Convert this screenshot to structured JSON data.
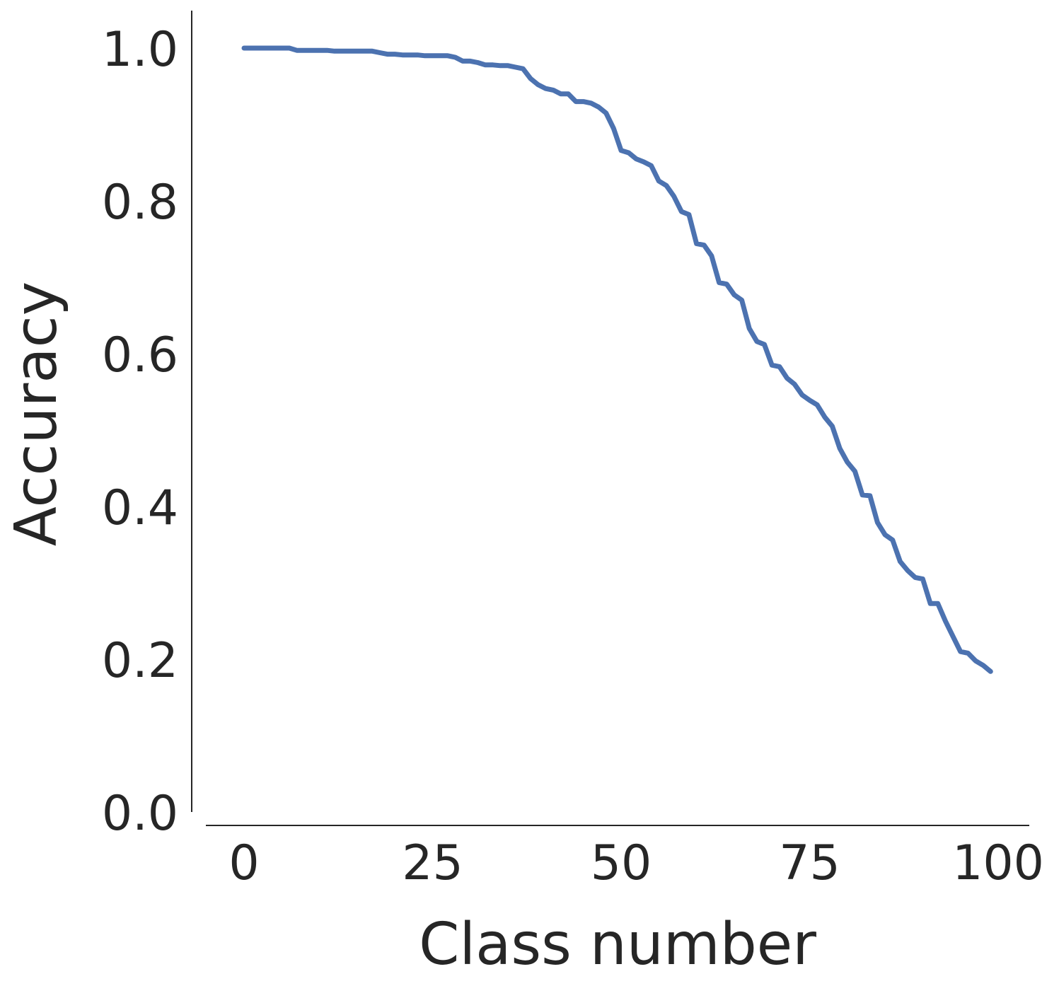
{
  "chart_data": {
    "type": "line",
    "xlabel": "Class number",
    "ylabel": "Accuracy",
    "xlim": [
      -5,
      104
    ],
    "ylim": [
      0,
      1.05
    ],
    "xticks": [
      0,
      25,
      50,
      75,
      100
    ],
    "yticks": [
      0.0,
      0.2,
      0.4,
      0.6,
      0.8,
      1.0
    ],
    "xtick_labels": [
      "0",
      "25",
      "50",
      "75",
      "100"
    ],
    "ytick_labels": [
      "0.0",
      "0.2",
      "0.4",
      "0.6",
      "0.8",
      "1.0"
    ],
    "grid": false,
    "line_color": "#4c72b0",
    "series": [
      {
        "x": [
          0,
          1,
          2,
          3,
          4,
          5,
          6,
          7,
          8,
          9,
          10,
          11,
          12,
          13,
          14,
          15,
          16,
          17,
          18,
          19,
          20,
          21,
          22,
          23,
          24,
          25,
          26,
          27,
          28,
          29,
          30,
          31,
          32,
          33,
          34,
          35,
          36,
          37,
          38,
          39,
          40,
          41,
          42,
          43,
          44,
          45,
          46,
          47,
          48,
          49,
          50,
          51,
          52,
          53,
          54,
          55,
          56,
          57,
          58,
          59,
          60,
          61,
          62,
          63,
          64,
          65,
          66,
          67,
          68,
          69,
          70,
          71,
          72,
          73,
          74,
          75,
          76,
          77,
          78,
          79,
          80,
          81,
          82,
          83,
          84,
          85,
          86,
          87,
          88,
          89,
          90,
          91,
          92,
          93,
          94,
          95,
          96,
          97,
          98,
          99
        ],
        "y": [
          1.0,
          1.0,
          1.0,
          1.0,
          1.0,
          1.0,
          1.0,
          0.997,
          0.997,
          0.997,
          0.997,
          0.997,
          0.996,
          0.996,
          0.996,
          0.996,
          0.996,
          0.996,
          0.994,
          0.992,
          0.992,
          0.991,
          0.991,
          0.991,
          0.99,
          0.99,
          0.99,
          0.99,
          0.988,
          0.983,
          0.983,
          0.981,
          0.978,
          0.978,
          0.977,
          0.977,
          0.975,
          0.973,
          0.96,
          0.952,
          0.947,
          0.945,
          0.94,
          0.94,
          0.93,
          0.93,
          0.928,
          0.923,
          0.915,
          0.895,
          0.866,
          0.863,
          0.855,
          0.851,
          0.846,
          0.826,
          0.82,
          0.806,
          0.786,
          0.782,
          0.744,
          0.742,
          0.728,
          0.693,
          0.691,
          0.677,
          0.67,
          0.633,
          0.616,
          0.612,
          0.585,
          0.583,
          0.568,
          0.56,
          0.546,
          0.539,
          0.533,
          0.517,
          0.505,
          0.476,
          0.458,
          0.446,
          0.415,
          0.414,
          0.379,
          0.363,
          0.356,
          0.328,
          0.316,
          0.307,
          0.305,
          0.273,
          0.273,
          0.25,
          0.23,
          0.21,
          0.208,
          0.198,
          0.192,
          0.184
        ]
      }
    ]
  }
}
